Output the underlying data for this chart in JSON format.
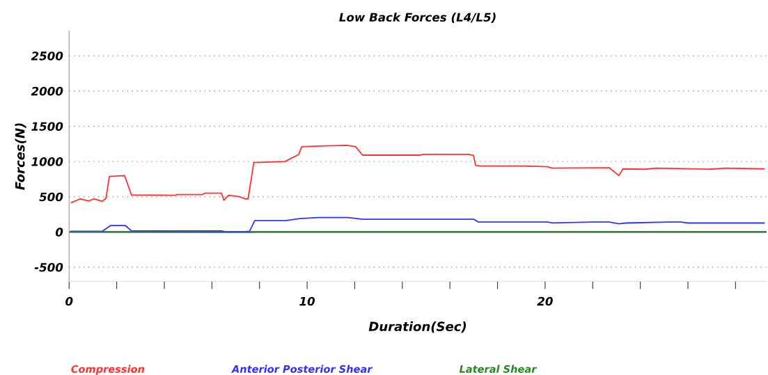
{
  "chart_data": {
    "type": "line",
    "title": "Low Back Forces (L4/L5)",
    "xlabel": "Duration(Sec)",
    "ylabel": "Forces(N)",
    "xlim": [
      0,
      29.3
    ],
    "ylim": [
      -700,
      2850
    ],
    "xticks": [
      0,
      {
        "value": 2,
        "label": null
      },
      {
        "value": 4,
        "label": null
      },
      {
        "value": 6,
        "label": null
      },
      {
        "value": 8,
        "label": null
      },
      10,
      {
        "value": 12,
        "label": null
      },
      {
        "value": 14,
        "label": null
      },
      {
        "value": 16,
        "label": null
      },
      {
        "value": 18,
        "label": null
      },
      20,
      {
        "value": 22,
        "label": null
      },
      {
        "value": 24,
        "label": null
      },
      {
        "value": 26,
        "label": null
      },
      {
        "value": 28,
        "label": null
      }
    ],
    "yticks": [
      -500,
      0,
      500,
      1000,
      1500,
      2000,
      2500
    ],
    "grid": "y",
    "legend": "bottom",
    "marker": "none",
    "line_style": "solid",
    "ref_lines": [
      {
        "axis": "y",
        "value": 0,
        "label": null,
        "color": "#444444",
        "line_style": "solid"
      }
    ],
    "series": [
      {
        "name": "Compression",
        "color": "#ff3030",
        "x": [
          0.09,
          0.47,
          0.82,
          1.05,
          1.4,
          1.55,
          1.69,
          2.33,
          2.62,
          4.46,
          4.5,
          5.6,
          5.7,
          6.4,
          6.5,
          6.7,
          7.17,
          7.38,
          7.52,
          7.76,
          9.07,
          9.65,
          9.77,
          10.5,
          11.66,
          12.04,
          12.33,
          14.75,
          14.87,
          16.79,
          16.99,
          17.08,
          17.29,
          19.1,
          20.1,
          20.3,
          22.7,
          23.1,
          23.27,
          24.2,
          24.67,
          26.9,
          27.6,
          29.2
        ],
        "values": [
          415,
          470,
          440,
          470,
          435,
          480,
          787,
          800,
          525,
          520,
          530,
          530,
          550,
          550,
          450,
          520,
          500,
          470,
          470,
          985,
          1000,
          1100,
          1210,
          1220,
          1230,
          1210,
          1090,
          1090,
          1100,
          1100,
          1085,
          945,
          935,
          935,
          925,
          905,
          910,
          800,
          895,
          890,
          905,
          890,
          905,
          895
        ]
      },
      {
        "name": "Anterior Posterior Shear",
        "color": "#3030ff",
        "x": [
          0.09,
          1.4,
          1.75,
          2.36,
          2.62,
          6.4,
          6.6,
          7.4,
          7.58,
          7.8,
          9.1,
          9.7,
          10.5,
          11.7,
          12.33,
          17.0,
          17.2,
          20.1,
          20.3,
          22.0,
          22.7,
          23.1,
          23.4,
          25.2,
          25.7,
          26.0,
          29.2
        ],
        "values": [
          10,
          10,
          92,
          92,
          15,
          15,
          0,
          5,
          10,
          160,
          160,
          190,
          205,
          205,
          180,
          180,
          140,
          140,
          128,
          140,
          140,
          115,
          127,
          140,
          140,
          127,
          127
        ]
      },
      {
        "name": "Lateral Shear",
        "color": "#228b22",
        "x": [
          0.09,
          7.0,
          7.5,
          8.0,
          29.2
        ],
        "values": [
          0,
          -5,
          -5,
          0,
          0
        ]
      }
    ]
  }
}
